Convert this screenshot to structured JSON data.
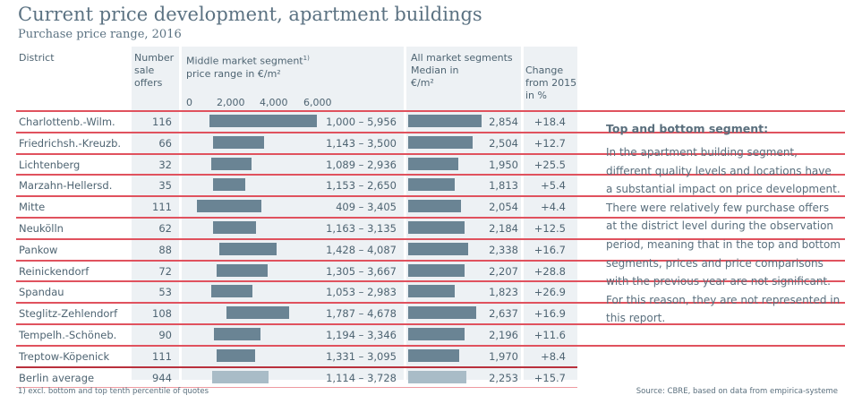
{
  "headings": {
    "title": "Current price development, apartment buildings",
    "subtitle": "Purchase price range, 2016"
  },
  "columns": {
    "district": "District",
    "offers": [
      "Number",
      "sale",
      "offers"
    ],
    "middle": [
      "Middle market segment",
      "price range in €/m²"
    ],
    "middle_sup": "1)",
    "median": [
      "All market segments",
      "Median in",
      "€/m²"
    ],
    "change": [
      "Change",
      "from 2015",
      "in %"
    ]
  },
  "axis_ticks": [
    "0",
    "2,000",
    "4,000",
    "6,000"
  ],
  "sidebar": {
    "title": "Top and bottom segment:",
    "body": "In the apartment building segment, different quality levels and locations have a substantial impact on price development. There were relatively few purchase offers at the district level during the observation period, meaning that in the top and bottom segments, prices and price comparisons with the previous year are not significant. For this reason, they are not represented in this report."
  },
  "footnote": "1) excl. bottom and top tenth percentile of quotes",
  "source": "Source: CBRE, based on data from empirica-systeme",
  "colors": {
    "bar": "#6a8494",
    "average_bar": "#a9bcc7",
    "rule": "#e0525e",
    "background_band": "#edf1f4"
  },
  "chart_data": {
    "type": "table",
    "range_axis": {
      "min": 0,
      "max": 6000,
      "ticks": [
        0,
        2000,
        4000,
        6000
      ]
    },
    "rows": [
      {
        "district": "Charlottenb.-Wilm.",
        "offers": "116",
        "low": 1000,
        "high": 5956,
        "range": "1,000 – 5,956",
        "median": 2854,
        "median_label": "2,854",
        "change": "+18.4"
      },
      {
        "district": "Friedrichsh.-Kreuzb.",
        "offers": "66",
        "low": 1143,
        "high": 3500,
        "range": "1,143 – 3,500",
        "median": 2504,
        "median_label": "2,504",
        "change": "+12.7"
      },
      {
        "district": "Lichtenberg",
        "offers": "32",
        "low": 1089,
        "high": 2936,
        "range": "1,089 – 2,936",
        "median": 1950,
        "median_label": "1,950",
        "change": "+25.5"
      },
      {
        "district": "Marzahn-Hellersd.",
        "offers": "35",
        "low": 1153,
        "high": 2650,
        "range": "1,153 – 2,650",
        "median": 1813,
        "median_label": "1,813",
        "change": "+5.4"
      },
      {
        "district": "Mitte",
        "offers": "111",
        "low": 409,
        "high": 3405,
        "range": "409 – 3,405",
        "median": 2054,
        "median_label": "2,054",
        "change": "+4.4"
      },
      {
        "district": "Neukölln",
        "offers": "62",
        "low": 1163,
        "high": 3135,
        "range": "1,163 – 3,135",
        "median": 2184,
        "median_label": "2,184",
        "change": "+12.5"
      },
      {
        "district": "Pankow",
        "offers": "88",
        "low": 1428,
        "high": 4087,
        "range": "1,428 – 4,087",
        "median": 2338,
        "median_label": "2,338",
        "change": "+16.7"
      },
      {
        "district": "Reinickendorf",
        "offers": "72",
        "low": 1305,
        "high": 3667,
        "range": "1,305 – 3,667",
        "median": 2207,
        "median_label": "2,207",
        "change": "+28.8"
      },
      {
        "district": "Spandau",
        "offers": "53",
        "low": 1053,
        "high": 2983,
        "range": "1,053 – 2,983",
        "median": 1823,
        "median_label": "1,823",
        "change": "+26.9"
      },
      {
        "district": "Steglitz-Zehlendorf",
        "offers": "108",
        "low": 1787,
        "high": 4678,
        "range": "1,787 – 4,678",
        "median": 2637,
        "median_label": "2,637",
        "change": "+16.9"
      },
      {
        "district": "Tempelh.-Schöneb.",
        "offers": "90",
        "low": 1194,
        "high": 3346,
        "range": "1,194 – 3,346",
        "median": 2196,
        "median_label": "2,196",
        "change": "+11.6"
      },
      {
        "district": "Treptow-Köpenick",
        "offers": "111",
        "low": 1331,
        "high": 3095,
        "range": "1,331 – 3,095",
        "median": 1970,
        "median_label": "1,970",
        "change": "+8.4"
      }
    ],
    "average": {
      "district": "Berlin average",
      "offers": "944",
      "low": 1114,
      "high": 3728,
      "range": "1,114 – 3,728",
      "median": 2253,
      "median_label": "2,253",
      "change": "+15.7"
    }
  }
}
